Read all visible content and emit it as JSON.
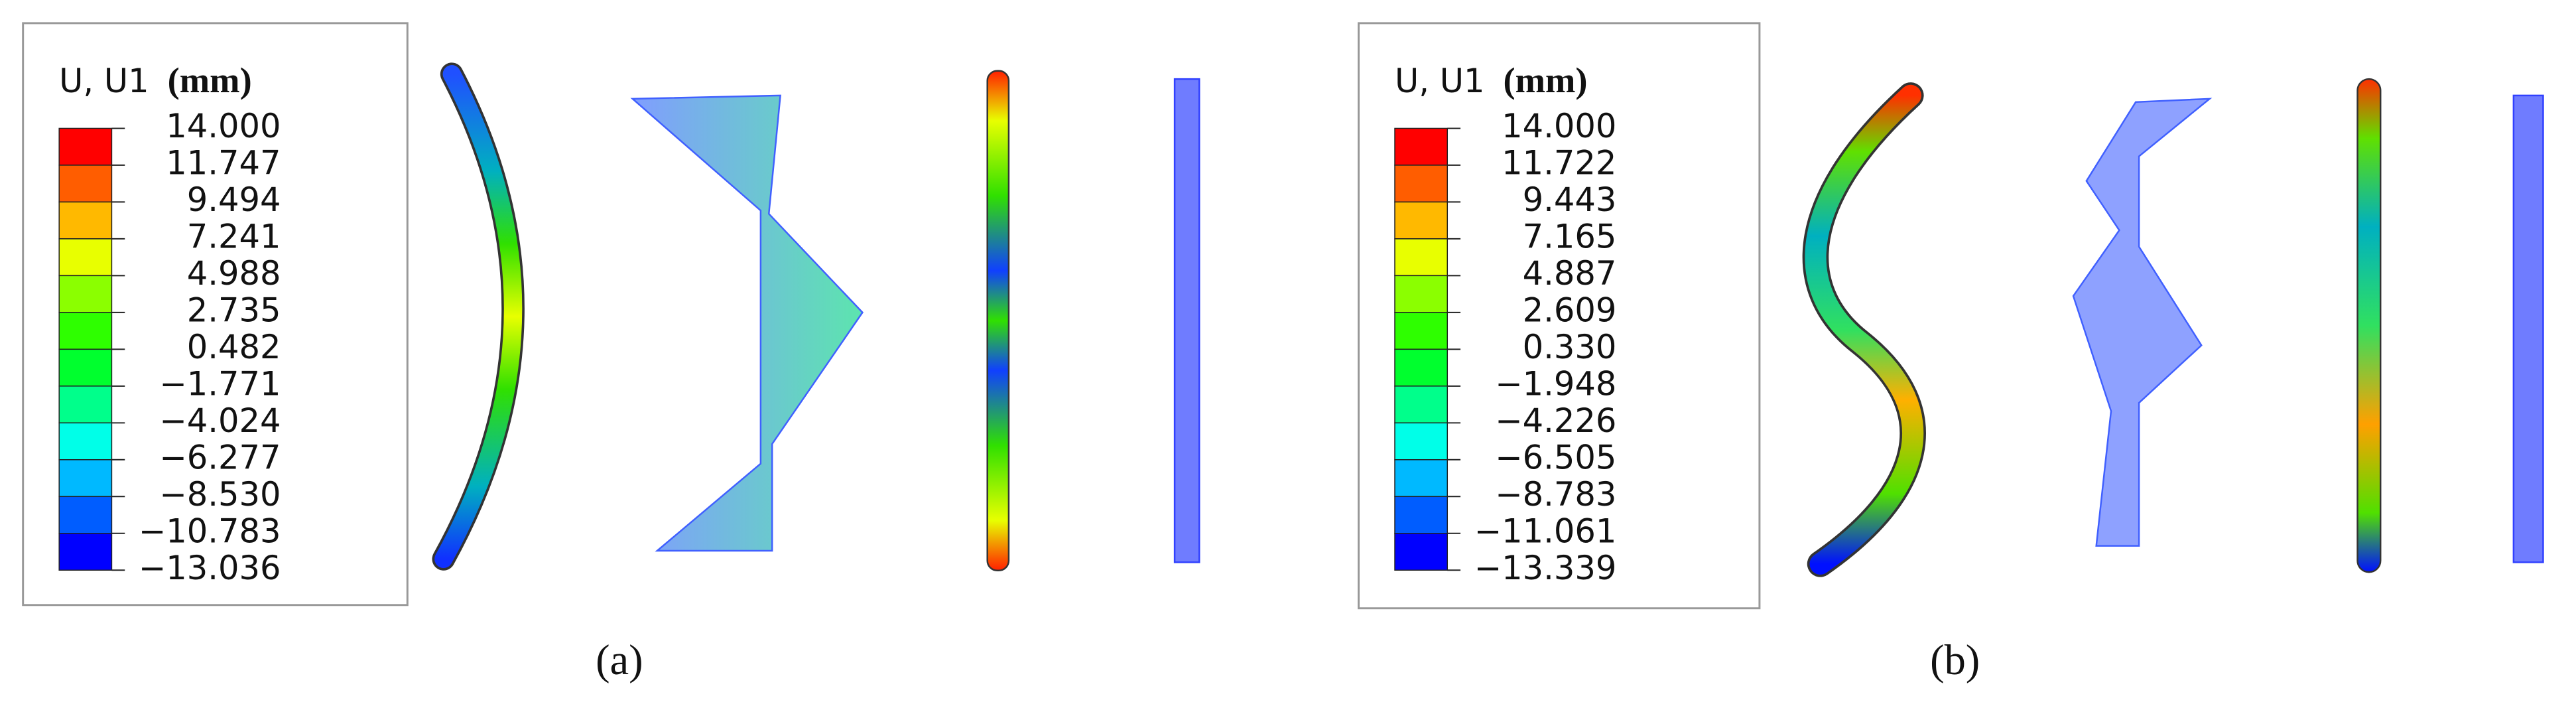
{
  "panels": [
    {
      "legend": {
        "title": "U, U1",
        "unit": "(mm)",
        "levels": [
          "14.000",
          "11.747",
          "9.494",
          "7.241",
          "4.988",
          "2.735",
          "0.482",
          "−1.771",
          "−4.024",
          "−6.277",
          "−8.530",
          "−10.783",
          "−13.036"
        ]
      },
      "label": "(a)"
    },
    {
      "legend": {
        "title": "U, U1",
        "unit": "(mm)",
        "levels": [
          "14.000",
          "11.722",
          "9.443",
          "7.165",
          "4.887",
          "2.609",
          "0.330",
          "−1.948",
          "−4.226",
          "−6.505",
          "−8.783",
          "−11.061",
          "−13.339"
        ]
      },
      "label": "(b)"
    }
  ],
  "colors": [
    "#ff0000",
    "#ff5d00",
    "#ffb900",
    "#e8ff00",
    "#8bff00",
    "#2eff00",
    "#00ff2e",
    "#00ff8b",
    "#00ffe8",
    "#00b9ff",
    "#005dff",
    "#0000ff"
  ]
}
